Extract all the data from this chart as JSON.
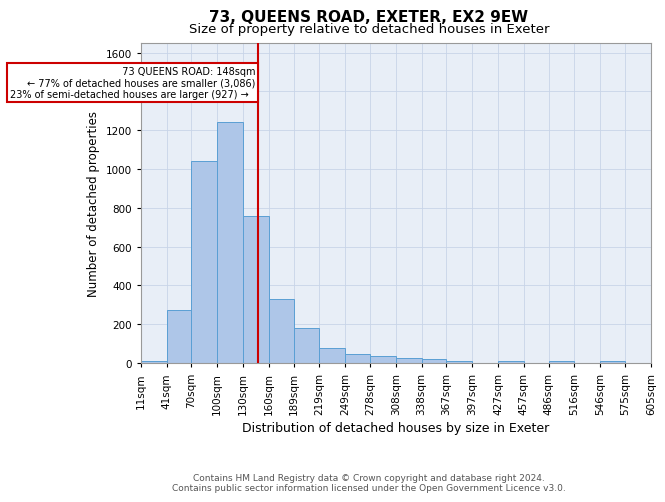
{
  "title": "73, QUEENS ROAD, EXETER, EX2 9EW",
  "subtitle": "Size of property relative to detached houses in Exeter",
  "xlabel": "Distribution of detached houses by size in Exeter",
  "ylabel": "Number of detached properties",
  "footer_line1": "Contains HM Land Registry data © Crown copyright and database right 2024.",
  "footer_line2": "Contains public sector information licensed under the Open Government Licence v3.0.",
  "annotation_title": "73 QUEENS ROAD: 148sqm",
  "annotation_line1": "← 77% of detached houses are smaller (3,086)",
  "annotation_line2": "23% of semi-detached houses are larger (927) →",
  "property_size": 148,
  "bar_edges": [
    11,
    41,
    70,
    100,
    130,
    160,
    189,
    219,
    249,
    278,
    308,
    338,
    367,
    397,
    427,
    457,
    486,
    516,
    546,
    575,
    605
  ],
  "bar_heights": [
    10,
    275,
    1040,
    1245,
    760,
    330,
    180,
    75,
    45,
    38,
    28,
    22,
    10,
    0,
    10,
    0,
    12,
    0,
    12,
    0,
    0
  ],
  "bar_color": "#aec6e8",
  "bar_edge_color": "#5a9fd4",
  "vline_color": "#cc0000",
  "vline_x": 148,
  "annotation_box_color": "#cc0000",
  "ylim": [
    0,
    1650
  ],
  "yticks": [
    0,
    200,
    400,
    600,
    800,
    1000,
    1200,
    1400,
    1600
  ],
  "grid_color": "#c8d4e8",
  "background_color": "#e8eef7",
  "title_fontsize": 11,
  "subtitle_fontsize": 9.5,
  "axis_label_fontsize": 8.5,
  "tick_fontsize": 7.5,
  "footer_fontsize": 6.5
}
